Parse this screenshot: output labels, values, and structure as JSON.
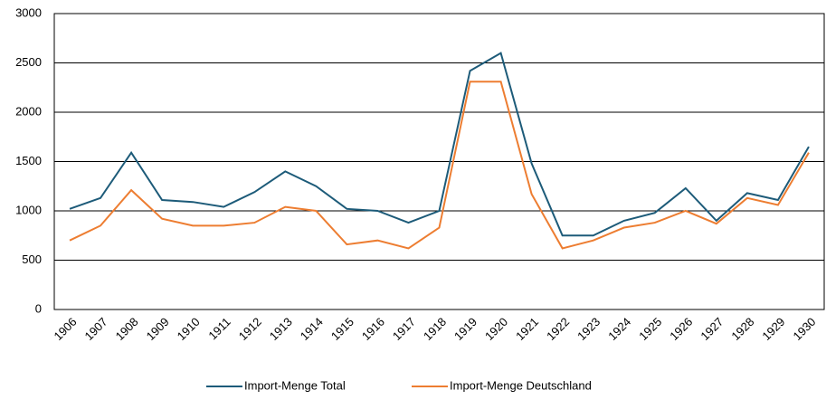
{
  "chart_data": {
    "type": "line",
    "categories": [
      "1906",
      "1907",
      "1908",
      "1909",
      "1910",
      "1911",
      "1912",
      "1913",
      "1914",
      "1915",
      "1916",
      "1917",
      "1918",
      "1919",
      "1920",
      "1921",
      "1922",
      "1923",
      "1924",
      "1925",
      "1926",
      "1927",
      "1928",
      "1929",
      "1930"
    ],
    "series": [
      {
        "name": "Import-Menge Total",
        "color": "#1d5b79",
        "values": [
          1020,
          1130,
          1590,
          1110,
          1090,
          1040,
          1190,
          1400,
          1250,
          1020,
          1000,
          880,
          1000,
          2420,
          2600,
          1480,
          750,
          750,
          900,
          980,
          1230,
          900,
          1180,
          1110,
          1650
        ]
      },
      {
        "name": "Import-Menge Deutschland",
        "color": "#ed7d31",
        "values": [
          700,
          850,
          1210,
          920,
          850,
          850,
          880,
          1040,
          1000,
          660,
          700,
          620,
          830,
          2310,
          2310,
          1170,
          620,
          700,
          830,
          880,
          1000,
          870,
          1130,
          1060,
          1590
        ]
      }
    ],
    "ylim": [
      0,
      3000
    ],
    "yticks": [
      0,
      500,
      1000,
      1500,
      2000,
      2500,
      3000
    ],
    "grid": true,
    "legend": "bottom"
  }
}
